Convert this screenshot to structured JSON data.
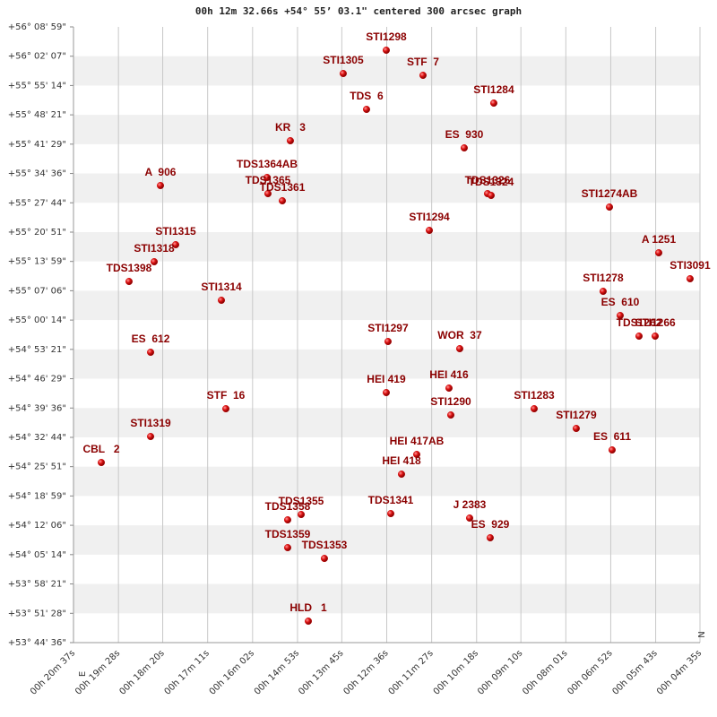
{
  "chart_data": {
    "type": "scatter",
    "title": "00h 12m 32.66s +54° 55’ 03.1\" centered 300 arcsec graph",
    "north_label": "N",
    "east_label": "E",
    "color": "#cc0000",
    "label_color": "#8b0000",
    "grid": true,
    "xlim": [
      1237,
      275
    ],
    "ylim": [
      53.7433,
      56.1497
    ],
    "xticks": [
      {
        "value": 1237,
        "label": "00h 20m 37s"
      },
      {
        "value": 1168,
        "label": "00h 19m 28s"
      },
      {
        "value": 1100,
        "label": "00h 18m 20s"
      },
      {
        "value": 1031,
        "label": "00h 17m 11s"
      },
      {
        "value": 962,
        "label": "00h 16m 02s"
      },
      {
        "value": 893,
        "label": "00h 14m 53s"
      },
      {
        "value": 825,
        "label": "00h 13m 45s"
      },
      {
        "value": 756,
        "label": "00h 12m 36s"
      },
      {
        "value": 687,
        "label": "00h 11m 27s"
      },
      {
        "value": 618,
        "label": "00h 10m 18s"
      },
      {
        "value": 550,
        "label": "00h 09m 10s"
      },
      {
        "value": 481,
        "label": "00h 08m 01s"
      },
      {
        "value": 412,
        "label": "00h 06m 52s"
      },
      {
        "value": 343,
        "label": "00h 05m 43s"
      },
      {
        "value": 275,
        "label": "00h 04m 35s"
      }
    ],
    "yticks": [
      {
        "value": 56.1497,
        "label": "+56° 08' 59\""
      },
      {
        "value": 56.0351,
        "label": "+56° 02' 07\""
      },
      {
        "value": 55.9206,
        "label": "+55° 55' 14\""
      },
      {
        "value": 55.806,
        "label": "+55° 48' 21\""
      },
      {
        "value": 55.6914,
        "label": "+55° 41' 29\""
      },
      {
        "value": 55.5768,
        "label": "+55° 34' 36\""
      },
      {
        "value": 55.4622,
        "label": "+55° 27' 44\""
      },
      {
        "value": 55.3476,
        "label": "+55° 20' 51\""
      },
      {
        "value": 55.2331,
        "label": "+55° 13' 59\""
      },
      {
        "value": 55.1185,
        "label": "+55° 07' 06\""
      },
      {
        "value": 55.0039,
        "label": "+55° 00' 14\""
      },
      {
        "value": 54.8893,
        "label": "+54° 53' 21\""
      },
      {
        "value": 54.7747,
        "label": "+54° 46' 29\""
      },
      {
        "value": 54.6601,
        "label": "+54° 39' 36\""
      },
      {
        "value": 54.5455,
        "label": "+54° 32' 44\""
      },
      {
        "value": 54.431,
        "label": "+54° 25' 51\""
      },
      {
        "value": 54.3164,
        "label": "+54° 18' 59\""
      },
      {
        "value": 54.2018,
        "label": "+54° 12' 06\""
      },
      {
        "value": 54.0872,
        "label": "+54° 05' 14\""
      },
      {
        "value": 53.9726,
        "label": "+53° 58' 21\""
      },
      {
        "value": 53.8578,
        "label": "+53° 51' 28\""
      },
      {
        "value": 53.7433,
        "label": "+53° 44' 36\""
      }
    ],
    "point_labels": [
      "STI1298",
      "STI1305",
      "STF  7",
      "TDS  6",
      "STI1284",
      "KR   3",
      "ES  930",
      "A  906",
      "TDS1364AB",
      "TDS1365",
      "TDS1361",
      "TDS1326",
      "TDS1324",
      "STI1274AB",
      "STI1294",
      "STI1315",
      "STI1318",
      "TDS1398",
      "A 1251",
      "STI3091",
      "STI1314",
      "STI1278",
      "ES  610",
      "TDS1262",
      "STI1266",
      "STI1297",
      "WOR  37",
      "ES  612",
      "HEI 419",
      "HEI 416",
      "STF  16",
      "STI1290",
      "STI1283",
      "STI1279",
      "STI1319",
      "ES  611",
      "CBL   2",
      "HEI 417AB",
      "HEI 418",
      "TDS1355",
      "TDS1358",
      "TDS1341",
      "J 2383",
      "ES  929",
      "TDS1359",
      "TDS1353",
      "HLD   1"
    ],
    "x": [
      756.7,
      822.8,
      700.3,
      787.0,
      591.6,
      904.0,
      637.0,
      1103.5,
      939.7,
      938.4,
      916.3,
      601.2,
      595.7,
      414.0,
      690.6,
      1080.1,
      1113.1,
      1151.7,
      338.3,
      290.2,
      1009.9,
      423.7,
      397.5,
      368.6,
      343.8,
      754.0,
      643.9,
      1118.6,
      756.7,
      660.4,
      1003.0,
      657.6,
      529.6,
      465.0,
      1118.6,
      409.9,
      1194.3,
      709.9,
      733.3,
      887.4,
      908.1,
      749.8,
      628.7,
      597.1,
      908.1,
      851.7,
      876.4
    ],
    "values": [
      56.0586,
      55.9675,
      55.9605,
      55.8274,
      55.8519,
      55.7048,
      55.6768,
      55.5297,
      55.5612,
      55.4981,
      55.4701,
      55.4981,
      55.4911,
      55.4456,
      55.3545,
      55.2985,
      55.2319,
      55.1548,
      55.2669,
      55.1654,
      55.0813,
      55.1163,
      55.0217,
      54.9412,
      54.9412,
      54.9201,
      54.8921,
      54.8781,
      54.7205,
      54.738,
      54.6574,
      54.6329,
      54.6574,
      54.5804,
      54.5488,
      54.4963,
      54.4472,
      54.4788,
      54.4017,
      54.2441,
      54.223,
      54.2476,
      54.2301,
      54.153,
      54.1145,
      54.0724,
      53.8272
    ]
  }
}
